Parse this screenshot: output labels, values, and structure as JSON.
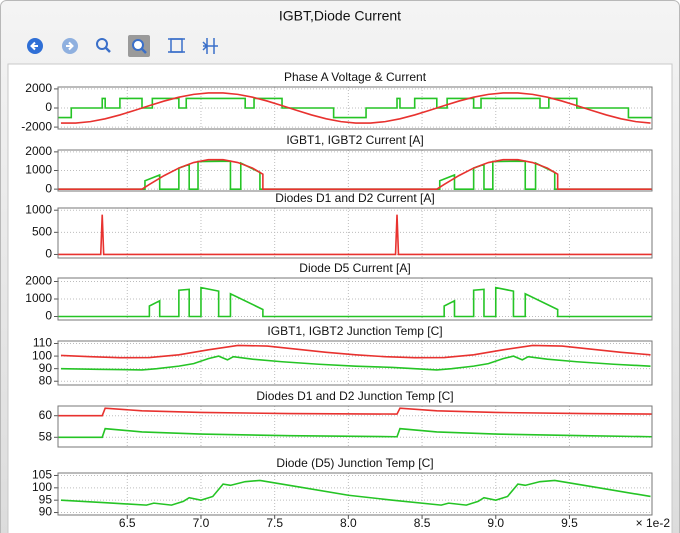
{
  "window_title": "IGBT,Diode Current",
  "chart_data": [
    {
      "type": "line",
      "title": "Phase A Voltage & Current",
      "xlim": [
        6.03,
        10.06
      ],
      "xticks": [
        6.5,
        {
          "value": 7,
          "label": "7.0"
        },
        7.5,
        {
          "value": 8,
          "label": "8.0"
        },
        8.5,
        {
          "value": 9,
          "label": "9.0"
        },
        9.5
      ],
      "ylim": [
        -2200,
        2200
      ],
      "yticks": [
        2000,
        0,
        -2000
      ],
      "grid": true,
      "series": [
        {
          "color": "#25c425",
          "x": [
            6.03,
            6.12,
            6.12,
            6.33,
            6.33,
            6.35,
            6.35,
            6.45,
            6.45,
            6.6,
            6.6,
            6.67,
            6.67,
            6.85,
            6.85,
            6.9,
            6.9,
            7.3,
            7.3,
            7.36,
            7.36,
            7.55,
            7.55,
            7.9,
            7.9,
            8.12,
            8.12,
            8.33,
            8.33,
            8.35,
            8.35,
            8.45,
            8.45,
            8.6,
            8.6,
            8.67,
            8.67,
            8.85,
            8.85,
            8.9,
            8.9,
            9.3,
            9.3,
            9.36,
            9.36,
            9.55,
            9.55,
            9.9,
            9.9,
            10.06
          ],
          "values": [
            -1000,
            -1000,
            0,
            0,
            1000,
            1000,
            0,
            0,
            1000,
            1000,
            0,
            0,
            1000,
            1000,
            0,
            0,
            1000,
            1000,
            0,
            0,
            1000,
            1000,
            0,
            0,
            -1000,
            -1000,
            0,
            0,
            1000,
            1000,
            0,
            0,
            1000,
            1000,
            0,
            0,
            1000,
            1000,
            0,
            0,
            1000,
            1000,
            0,
            0,
            1000,
            1000,
            0,
            0,
            -1000,
            -1000
          ]
        },
        {
          "color": "#e8322f",
          "x": [
            6.05,
            6.15,
            6.25,
            6.35,
            6.45,
            6.55,
            6.65,
            6.75,
            6.85,
            6.95,
            7.05,
            7.15,
            7.25,
            7.35,
            7.45,
            7.55,
            7.65,
            7.75,
            7.85,
            7.95,
            8.05,
            8.15,
            8.25,
            8.35,
            8.45,
            8.55,
            8.65,
            8.75,
            8.85,
            8.95,
            9.05,
            9.15,
            9.25,
            9.35,
            9.45,
            9.55,
            9.65,
            9.75,
            9.85,
            9.95,
            10.05
          ],
          "values": [
            -1580,
            -1580,
            -1426,
            -1131,
            -726,
            -250,
            250,
            726,
            1131,
            1426,
            1580,
            1580,
            1426,
            1131,
            726,
            250,
            -250,
            -726,
            -1131,
            -1426,
            -1580,
            -1580,
            -1426,
            -1131,
            -726,
            -250,
            250,
            726,
            1131,
            1426,
            1580,
            1580,
            1426,
            1131,
            726,
            250,
            -250,
            -726,
            -1131,
            -1426,
            -1580
          ]
        }
      ]
    },
    {
      "type": "line",
      "title": "IGBT1, IGBT2 Current [A]",
      "xlim": [
        6.03,
        10.06
      ],
      "xticks": [
        6.5,
        {
          "value": 7,
          "label": "7.0"
        },
        7.5,
        {
          "value": 8,
          "label": "8.0"
        },
        8.5,
        {
          "value": 9,
          "label": "9.0"
        },
        9.5
      ],
      "ylim": [
        -100,
        2100
      ],
      "yticks": [
        2000,
        1000,
        0
      ],
      "grid": true,
      "series": [
        {
          "color": "#25c425",
          "x": [
            6.03,
            6.62,
            6.62,
            6.72,
            6.72,
            6.85,
            6.85,
            6.92,
            6.92,
            6.98,
            6.98,
            7.2,
            7.2,
            7.27,
            7.27,
            7.4,
            7.4,
            8.62,
            8.62,
            8.72,
            8.72,
            8.85,
            8.85,
            8.92,
            8.92,
            8.98,
            8.98,
            9.2,
            9.2,
            9.27,
            9.27,
            9.4,
            9.4,
            10.06
          ],
          "values": [
            0,
            0,
            450,
            760,
            0,
            0,
            1131,
            1330,
            0,
            0,
            1480,
            1500,
            0,
            0,
            1400,
            900,
            0,
            0,
            450,
            760,
            0,
            0,
            1131,
            1330,
            0,
            0,
            1480,
            1500,
            0,
            0,
            1400,
            900,
            0,
            0
          ]
        },
        {
          "color": "#e8322f",
          "x": [
            6.03,
            6.6,
            6.65,
            6.75,
            6.85,
            6.95,
            7.05,
            7.15,
            7.25,
            7.35,
            7.42,
            7.42,
            8.6,
            8.65,
            8.75,
            8.85,
            8.95,
            9.05,
            9.15,
            9.25,
            9.35,
            9.42,
            9.42,
            10.06
          ],
          "values": [
            0,
            0,
            250,
            726,
            1131,
            1426,
            1580,
            1580,
            1426,
            1131,
            800,
            0,
            0,
            250,
            726,
            1131,
            1426,
            1580,
            1580,
            1426,
            1131,
            800,
            0,
            0
          ]
        }
      ]
    },
    {
      "type": "line",
      "title": "Diodes D1 and D2 Current [A]",
      "xlim": [
        6.03,
        10.06
      ],
      "xticks": [
        6.5,
        {
          "value": 7,
          "label": "7.0"
        },
        7.5,
        {
          "value": 8,
          "label": "8.0"
        },
        8.5,
        {
          "value": 9,
          "label": "9.0"
        },
        9.5
      ],
      "ylim": [
        -80,
        1050
      ],
      "yticks": [
        1000,
        500,
        0
      ],
      "grid": true,
      "series": [
        {
          "color": "#e8322f",
          "x": [
            6.03,
            6.32,
            6.33,
            6.34,
            8.32,
            8.33,
            8.34,
            10.06
          ],
          "values": [
            0,
            0,
            900,
            0,
            0,
            900,
            0,
            0
          ]
        }
      ]
    },
    {
      "type": "line",
      "title": "Diode D5 Current [A]",
      "xlim": [
        6.03,
        10.06
      ],
      "xticks": [
        6.5,
        {
          "value": 7,
          "label": "7.0"
        },
        7.5,
        {
          "value": 8,
          "label": "8.0"
        },
        8.5,
        {
          "value": 9,
          "label": "9.0"
        },
        9.5
      ],
      "ylim": [
        -200,
        2200
      ],
      "yticks": [
        2000,
        1000,
        0
      ],
      "grid": true,
      "series": [
        {
          "color": "#25c425",
          "x": [
            6.03,
            6.65,
            6.65,
            6.72,
            6.72,
            6.85,
            6.85,
            6.92,
            6.92,
            7.0,
            7.0,
            7.12,
            7.12,
            7.2,
            7.2,
            7.42,
            7.42,
            8.65,
            8.65,
            8.72,
            8.72,
            8.85,
            8.85,
            8.92,
            8.92,
            9.0,
            9.0,
            9.12,
            9.12,
            9.2,
            9.2,
            9.42,
            9.42,
            10.06
          ],
          "values": [
            0,
            0,
            600,
            900,
            0,
            0,
            1500,
            1550,
            0,
            0,
            1650,
            1450,
            0,
            0,
            1300,
            400,
            0,
            0,
            600,
            900,
            0,
            0,
            1500,
            1550,
            0,
            0,
            1650,
            1450,
            0,
            0,
            1300,
            400,
            0,
            0
          ]
        }
      ]
    },
    {
      "type": "line",
      "title": "IGBT1, IGBT2 Junction Temp [C]",
      "xlim": [
        6.03,
        10.06
      ],
      "xticks": [
        6.5,
        {
          "value": 7,
          "label": "7.0"
        },
        7.5,
        {
          "value": 8,
          "label": "8.0"
        },
        8.5,
        {
          "value": 9,
          "label": "9.0"
        },
        9.5
      ],
      "ylim": [
        77,
        112
      ],
      "yticks": [
        110,
        100,
        90,
        80
      ],
      "grid": true,
      "series": [
        {
          "color": "#e8322f",
          "x": [
            6.05,
            6.25,
            6.45,
            6.65,
            6.85,
            7.05,
            7.25,
            7.45,
            7.65,
            7.85,
            8.05,
            8.25,
            8.45,
            8.65,
            8.85,
            9.05,
            9.25,
            9.45,
            9.65,
            9.85,
            10.05
          ],
          "values": [
            100.5,
            99.5,
            98.7,
            98.8,
            101,
            105,
            108.5,
            108,
            105.5,
            103,
            101,
            99.5,
            98.7,
            98.8,
            101,
            105,
            108.5,
            108,
            105.5,
            103,
            101
          ]
        },
        {
          "color": "#25c425",
          "x": [
            6.05,
            6.3,
            6.6,
            6.7,
            6.85,
            6.95,
            7.05,
            7.12,
            7.18,
            7.22,
            7.35,
            7.55,
            7.8,
            8.05,
            8.3,
            8.6,
            8.7,
            8.85,
            8.95,
            9.05,
            9.12,
            9.18,
            9.22,
            9.35,
            9.55,
            9.8,
            10.05
          ],
          "values": [
            90,
            89.5,
            89,
            90,
            92,
            94,
            98,
            100,
            97,
            99.5,
            97.5,
            95.5,
            93.5,
            92,
            91,
            89,
            90,
            92,
            94,
            98,
            100,
            97,
            99.5,
            97.5,
            95.5,
            93.5,
            92
          ]
        }
      ]
    },
    {
      "type": "line",
      "title": "Diodes D1 and D2 Junction Temp [C]",
      "xlim": [
        6.03,
        10.06
      ],
      "xticks": [
        6.5,
        {
          "value": 7,
          "label": "7.0"
        },
        7.5,
        {
          "value": 8,
          "label": "8.0"
        },
        8.5,
        {
          "value": 9,
          "label": "9.0"
        },
        9.5
      ],
      "ylim": [
        57.1,
        60.9
      ],
      "yticks": [
        60,
        58
      ],
      "grid": true,
      "series": [
        {
          "color": "#e8322f",
          "x": [
            6.03,
            6.33,
            6.35,
            6.6,
            7.0,
            7.6,
            8.33,
            8.35,
            8.6,
            9.0,
            9.6,
            10.06
          ],
          "values": [
            60,
            60,
            60.7,
            60.45,
            60.3,
            60.2,
            60.15,
            60.7,
            60.45,
            60.3,
            60.2,
            60.15
          ]
        },
        {
          "color": "#25c425",
          "x": [
            6.03,
            6.33,
            6.35,
            6.6,
            7.0,
            7.6,
            8.33,
            8.35,
            8.6,
            9.0,
            9.6,
            10.06
          ],
          "values": [
            58,
            58,
            58.8,
            58.5,
            58.3,
            58.15,
            58.05,
            58.8,
            58.5,
            58.3,
            58.15,
            58.05
          ]
        }
      ]
    },
    {
      "type": "line",
      "title": "Diode (D5) Junction Temp [C]",
      "xlim": [
        6.03,
        10.06
      ],
      "xticks": [
        6.5,
        {
          "value": 7,
          "label": "7.0"
        },
        7.5,
        {
          "value": 8,
          "label": "8.0"
        },
        8.5,
        {
          "value": 9,
          "label": "9.0"
        },
        9.5
      ],
      "x_scale_label": "× 1e-2",
      "ylim": [
        89,
        106
      ],
      "yticks": [
        105,
        100,
        95,
        90
      ],
      "grid": true,
      "series": [
        {
          "color": "#25c425",
          "x": [
            6.05,
            6.35,
            6.63,
            6.68,
            6.8,
            6.88,
            6.92,
            7.0,
            7.08,
            7.15,
            7.2,
            7.3,
            7.4,
            7.7,
            8.0,
            8.3,
            8.63,
            8.68,
            8.8,
            8.88,
            8.92,
            9.0,
            9.08,
            9.15,
            9.2,
            9.3,
            9.4,
            9.7,
            10.05
          ],
          "values": [
            95,
            94,
            93,
            93.8,
            93,
            94.5,
            96,
            95,
            96.5,
            101.5,
            101,
            102.5,
            103,
            100,
            97,
            95,
            93,
            93.8,
            93,
            94.5,
            96,
            95,
            96.5,
            101.5,
            101,
            102.5,
            103,
            100,
            96.5
          ]
        }
      ]
    }
  ]
}
